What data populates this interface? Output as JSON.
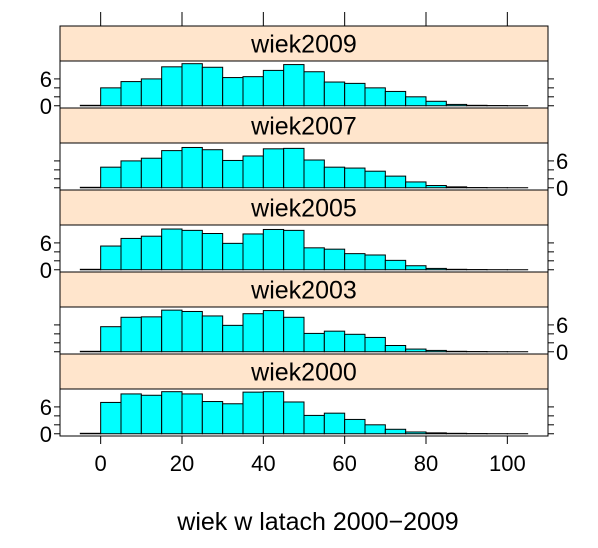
{
  "chart_data": {
    "type": "bar",
    "xlabel": "wiek w latach 2000−2009",
    "x_ticks": [
      0,
      20,
      40,
      60,
      80,
      100
    ],
    "x_range": [
      -10,
      110
    ],
    "y_ticks": [
      0,
      6
    ],
    "y_range": [
      -0.5,
      10
    ],
    "bin_edges": [
      -5,
      0,
      5,
      10,
      15,
      20,
      25,
      30,
      35,
      40,
      45,
      50,
      55,
      60,
      65,
      70,
      75,
      80,
      85,
      90,
      95,
      100,
      105
    ],
    "colors": {
      "bar": "#00ffff",
      "strip": "#ffe5cc",
      "border": "#000000"
    },
    "panels": [
      {
        "name": "wiek2009",
        "values": [
          0.1,
          4.0,
          5.4,
          6.0,
          8.7,
          9.4,
          8.6,
          6.3,
          6.5,
          7.9,
          9.2,
          7.6,
          5.3,
          5.0,
          4.0,
          3.2,
          2.0,
          1.0,
          0.3,
          0.1,
          0.05,
          0.02
        ]
      },
      {
        "name": "wiek2007",
        "values": [
          0.1,
          4.6,
          6.0,
          6.6,
          8.3,
          9.0,
          8.5,
          6.1,
          7.1,
          8.7,
          8.8,
          6.2,
          4.6,
          4.4,
          3.7,
          2.6,
          1.3,
          0.5,
          0.2,
          0.05,
          0.02,
          0.01
        ]
      },
      {
        "name": "wiek2005",
        "values": [
          0.1,
          5.3,
          7.0,
          7.5,
          9.1,
          8.8,
          8.1,
          5.9,
          8.0,
          9.0,
          8.8,
          4.9,
          4.6,
          3.6,
          3.3,
          2.1,
          0.9,
          0.3,
          0.1,
          0.05,
          0.02,
          0.01
        ]
      },
      {
        "name": "wiek2003",
        "values": [
          0.1,
          5.6,
          7.7,
          7.8,
          9.3,
          9.0,
          8.0,
          5.9,
          8.5,
          9.2,
          7.7,
          4.1,
          4.6,
          3.9,
          3.2,
          1.4,
          0.6,
          0.3,
          0.1,
          0.05,
          0.02,
          0.01
        ]
      },
      {
        "name": "wiek2000",
        "values": [
          0.1,
          7.0,
          8.9,
          8.6,
          9.4,
          8.9,
          7.2,
          6.7,
          9.3,
          9.4,
          7.1,
          4.1,
          4.6,
          3.2,
          2.0,
          1.0,
          0.4,
          0.2,
          0.1,
          0.05,
          0.02,
          0.01
        ]
      }
    ]
  }
}
